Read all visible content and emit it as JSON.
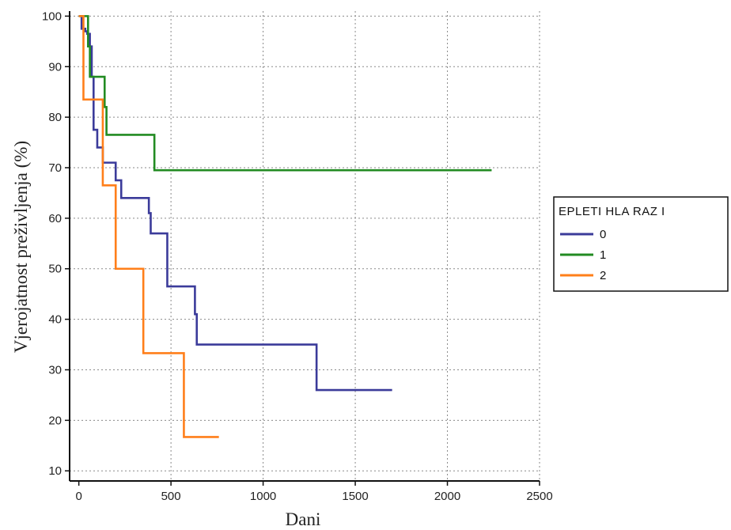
{
  "chart_data": {
    "type": "line",
    "title": "",
    "xlabel": "Dani",
    "ylabel": "Vjerojatnost preživljenja (%)",
    "xlim": [
      -50,
      2500
    ],
    "ylim": [
      8,
      101
    ],
    "xticks": [
      0,
      500,
      1000,
      1500,
      2000,
      2500
    ],
    "yticks": [
      10,
      20,
      30,
      40,
      50,
      60,
      70,
      80,
      90,
      100
    ],
    "grid": true,
    "legend": {
      "title": "EPLETI HLA RAZ I",
      "placement": "right"
    },
    "series": [
      {
        "name": "0",
        "color": "#3b3b9a",
        "steps": [
          [
            0,
            100
          ],
          [
            15,
            97.5
          ],
          [
            35,
            97
          ],
          [
            45,
            96.5
          ],
          [
            60,
            94
          ],
          [
            70,
            88
          ],
          [
            80,
            77.5
          ],
          [
            100,
            74
          ],
          [
            130,
            71
          ],
          [
            200,
            67.5
          ],
          [
            230,
            64
          ],
          [
            380,
            61
          ],
          [
            390,
            57
          ],
          [
            480,
            46.5
          ],
          [
            630,
            41
          ],
          [
            640,
            35
          ],
          [
            1290,
            26
          ],
          [
            1700,
            26
          ]
        ]
      },
      {
        "name": "1",
        "color": "#228b22",
        "steps": [
          [
            0,
            100
          ],
          [
            50,
            94
          ],
          [
            60,
            88
          ],
          [
            140,
            82
          ],
          [
            150,
            76.5
          ],
          [
            410,
            69.5
          ],
          [
            2240,
            69.5
          ]
        ]
      },
      {
        "name": "2",
        "color": "#ff7f1a",
        "steps": [
          [
            0,
            100
          ],
          [
            25,
            83.5
          ],
          [
            130,
            66.5
          ],
          [
            200,
            50
          ],
          [
            350,
            33.3
          ],
          [
            570,
            16.7
          ],
          [
            760,
            16.7
          ]
        ]
      }
    ]
  }
}
